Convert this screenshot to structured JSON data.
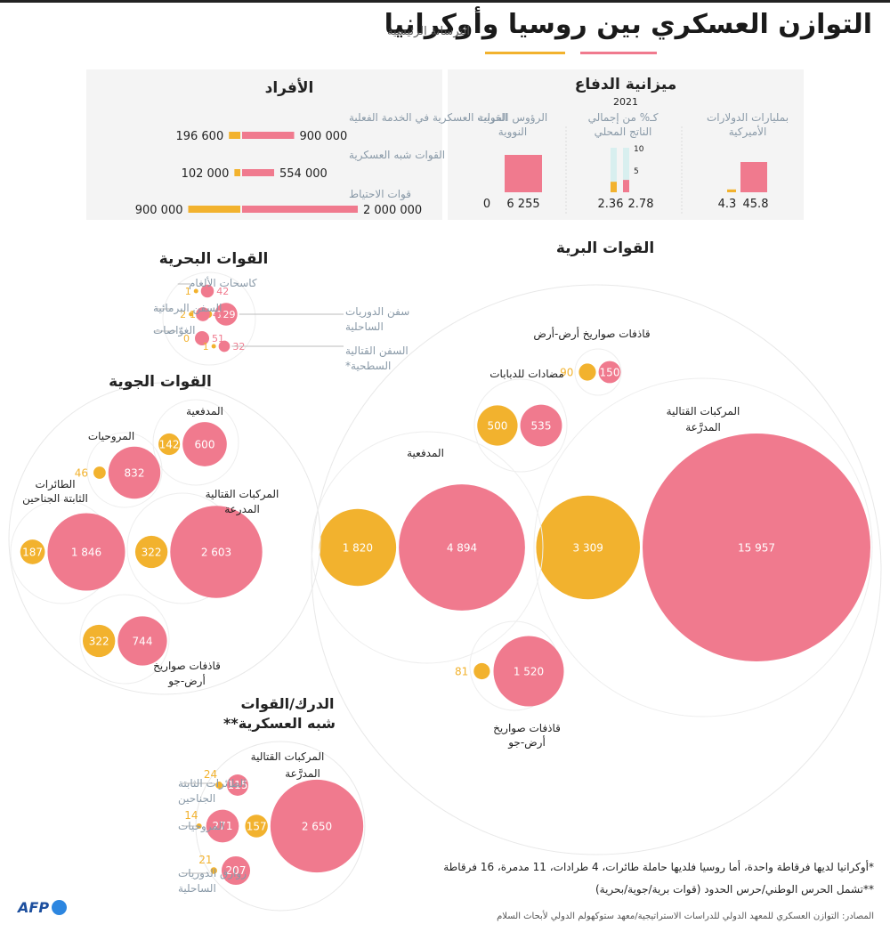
{
  "header": {
    "title": "التوازن العسكري بين روسيا وأوكرانيا",
    "subtitle": "الترسانة الرئيسية"
  },
  "colors": {
    "russia": "#f07a8e",
    "ukraine": "#f2b22e",
    "panel": "#f4f4f4",
    "grey_text": "#8a9aa8",
    "dark_text": "#222222"
  },
  "chart_data": [
    {
      "id": "personnel",
      "type": "bar",
      "title": "الأفراد",
      "categories": [
        "القوات العسكرية في الخدمة الفعلية",
        "القوات شبه العسكرية",
        "قوات الاحتياط"
      ],
      "series": [
        {
          "key": "russia",
          "values": [
            900000,
            554000,
            2000000
          ],
          "labels": [
            "900 000",
            "554 000",
            "2 000 000"
          ]
        },
        {
          "key": "ukraine",
          "values": [
            196600,
            102000,
            900000
          ],
          "labels": [
            "196 600",
            "102 000",
            "900 000"
          ]
        }
      ]
    },
    {
      "id": "budget",
      "type": "bar",
      "title": "ميزانية الدفاع",
      "year": "2021",
      "groups": [
        {
          "label": "بمليارات الدولارات الأميركية",
          "russia": 45.8,
          "ukraine": 4.3,
          "russia_label": "45.8",
          "ukraine_label": "4.3"
        },
        {
          "label": "كـ% من إجمالي الناتج المحلي",
          "russia": 2.78,
          "ukraine": 2.36,
          "russia_label": "2.78",
          "ukraine_label": "2.36",
          "ticks": [
            "10",
            "5"
          ]
        },
        {
          "label": "الرؤوس الحربية النووية",
          "russia": 6255,
          "ukraine": 0,
          "russia_label": "6 255",
          "ukraine_label": "0"
        }
      ]
    },
    {
      "id": "land",
      "type": "bubble",
      "title": "القوات البرية",
      "items": [
        {
          "label": "قاذفات صواريخ أرض-أرض",
          "russia": 150,
          "ukraine": 90,
          "russia_label": "150",
          "ukraine_label": "90"
        },
        {
          "label": "مضادات للدبابات",
          "russia": 535,
          "ukraine": 500,
          "russia_label": "535",
          "ukraine_label": "500"
        },
        {
          "label": "المركبات القتالية المدرَّعة",
          "russia": 15957,
          "ukraine": 3309,
          "russia_label": "15 957",
          "ukraine_label": "3 309"
        },
        {
          "label": "المدفعية",
          "russia": 4894,
          "ukraine": 1820,
          "russia_label": "4 894",
          "ukraine_label": "1 820"
        },
        {
          "label": "قاذفات صواريخ أرض-جو",
          "russia": 1520,
          "ukraine": 81,
          "russia_label": "1 520",
          "ukraine_label": "81"
        }
      ]
    },
    {
      "id": "naval",
      "type": "bubble",
      "title": "القوات البحرية",
      "items": [
        {
          "label": "كاسحات الألغام",
          "russia": 42,
          "ukraine": 1,
          "russia_label": "42",
          "ukraine_label": "1"
        },
        {
          "label": "سفن الدوريات الساحلية",
          "russia": 129,
          "ukraine": 12,
          "russia_label": "129",
          "ukraine_label": "12"
        },
        {
          "label": "السفن البرمائية",
          "russia": 49,
          "ukraine": 2,
          "russia_label": "49",
          "ukraine_label": "2"
        },
        {
          "label": "الغوّاصات",
          "russia": 51,
          "ukraine": 0,
          "russia_label": "51",
          "ukraine_label": "0"
        },
        {
          "label": "السفن القتالية السطحية*",
          "russia": 32,
          "ukraine": 1,
          "russia_label": "32",
          "ukraine_label": "1"
        }
      ]
    },
    {
      "id": "air",
      "type": "bubble",
      "title": "القوات الجوية",
      "items": [
        {
          "label": "المدفعية",
          "russia": 600,
          "ukraine": 142,
          "russia_label": "600",
          "ukraine_label": "142"
        },
        {
          "label": "المروحيات",
          "russia": 832,
          "ukraine": 46,
          "russia_label": "832",
          "ukraine_label": "46"
        },
        {
          "label": "الطائرات الثابتة الجناحين",
          "russia": 1846,
          "ukraine": 187,
          "russia_label": "1 846",
          "ukraine_label": "187"
        },
        {
          "label": "المركبات القتالية المدرعة",
          "russia": 2603,
          "ukraine": 322,
          "russia_label": "2 603",
          "ukraine_label": "322"
        },
        {
          "label": "قاذفات صواريخ أرض-جو",
          "russia": 744,
          "ukraine": 322,
          "russia_label": "744",
          "ukraine_label": "322"
        }
      ]
    },
    {
      "id": "paramilitary",
      "type": "bubble",
      "title": "الدرك/القوات شبه العسكرية**",
      "items": [
        {
          "label": "المركبات القتالية المدرَّعة",
          "russia": 2650,
          "ukraine": 157,
          "russia_label": "2 650",
          "ukraine_label": "157"
        },
        {
          "label": "الطائرات الثابتة الجناحين",
          "russia": 115,
          "ukraine": 24,
          "russia_label": "115",
          "ukraine_label": "24"
        },
        {
          "label": "المروحيات",
          "russia": 271,
          "ukraine": 14,
          "russia_label": "271",
          "ukraine_label": "14"
        },
        {
          "label": "زوارق الدوريات الساحلية",
          "russia": 207,
          "ukraine": 21,
          "russia_label": "207",
          "ukraine_label": "21"
        }
      ]
    }
  ],
  "footnotes": [
    "*أوكرانيا لديها فرقاطة واحدة، أما روسيا فلديها حاملة طائرات، 4 طرادات، 11 مدمرة، 16 فرقاطة",
    "**تشمل الحرس الوطني/حرس الحدود (قوات برية/جوية/بحرية)"
  ],
  "source": "المصادر: التوازن العسكري للمعهد الدولي للدراسات الاستراتيجية/معهد ستوكهولم الدولي لأبحاث السلام",
  "logo": "AFP"
}
